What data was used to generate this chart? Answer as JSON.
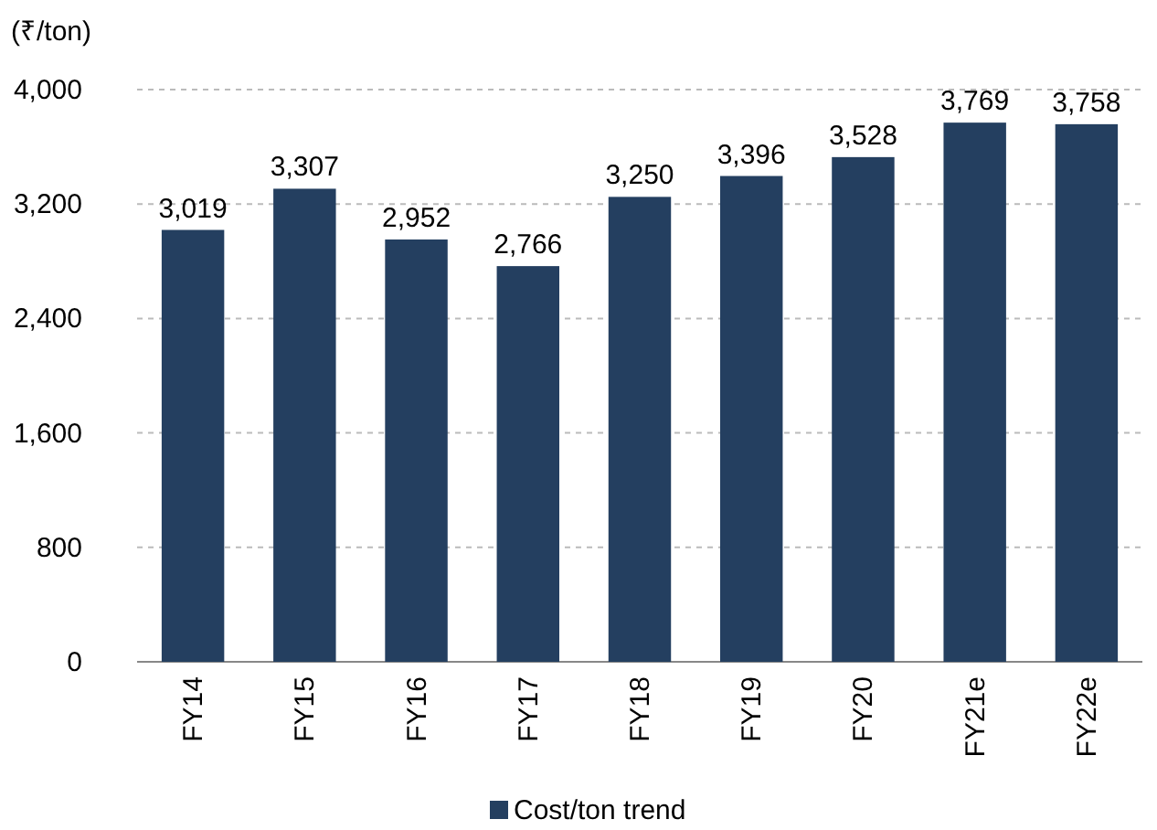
{
  "chart_data": {
    "type": "bar",
    "ylabel": "(₹/ton)",
    "categories": [
      "FY14",
      "FY15",
      "FY16",
      "FY17",
      "FY18",
      "FY19",
      "FY20",
      "FY21e",
      "FY22e"
    ],
    "series": [
      {
        "name": "Cost/ton trend",
        "color": "#243f60",
        "values": [
          3019,
          3307,
          2952,
          2766,
          3250,
          3396,
          3528,
          3769,
          3758
        ],
        "value_labels": [
          "3,019",
          "3,307",
          "2,952",
          "2,766",
          "3,250",
          "3,396",
          "3,528",
          "3,769",
          "3,758"
        ]
      }
    ],
    "ylim": [
      0,
      4000
    ],
    "yticks": [
      {
        "value": 0,
        "label": "0"
      },
      {
        "value": 800,
        "label": "800"
      },
      {
        "value": 1600,
        "label": "1,600"
      },
      {
        "value": 2400,
        "label": "2,400"
      },
      {
        "value": 3200,
        "label": "3,200"
      },
      {
        "value": 4000,
        "label": "4,000"
      }
    ],
    "grid": "y",
    "legend": "bottom"
  }
}
